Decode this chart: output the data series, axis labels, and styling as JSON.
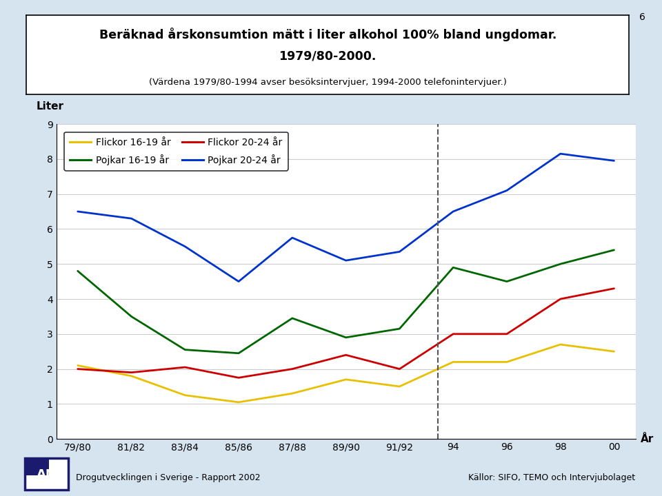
{
  "title_line1": "Beräknad årskonsumtion mätt i liter alkohol 100% bland ungdomar.",
  "title_line2": "1979/80-2000.",
  "subtitle": "(Värdena 1979/80-1994 avser besöksintervjuer, 1994-2000 telefonintervjuer.)",
  "ylabel": "Liter",
  "xlabel": "År",
  "page_number": "6",
  "x_labels": [
    "79/80",
    "81/82",
    "83/84",
    "85/86",
    "87/88",
    "89/90",
    "91/92",
    "94",
    "96",
    "98",
    "00"
  ],
  "x_positions": [
    0,
    1,
    2,
    3,
    4,
    5,
    6,
    7,
    8,
    9,
    10
  ],
  "dashed_line_x": 6.72,
  "ylim": [
    0,
    9
  ],
  "yticks": [
    0,
    1,
    2,
    3,
    4,
    5,
    6,
    7,
    8,
    9
  ],
  "series": [
    {
      "label": "Flickor 16-19 år",
      "color": "#E8C000",
      "values": [
        2.1,
        1.8,
        1.25,
        1.05,
        1.3,
        1.7,
        1.5,
        2.2,
        2.2,
        2.7,
        2.5
      ]
    },
    {
      "label": "Flickor 20-24 år",
      "color": "#CC0000",
      "values": [
        2.0,
        1.9,
        2.05,
        1.75,
        2.0,
        2.4,
        2.0,
        3.0,
        3.0,
        4.0,
        4.3
      ]
    },
    {
      "label": "Pojkar 16-19 år",
      "color": "#006600",
      "values": [
        4.8,
        3.5,
        2.55,
        2.45,
        3.45,
        2.9,
        3.15,
        4.9,
        4.5,
        5.0,
        5.4
      ]
    },
    {
      "label": "Pojkar 20-24 år",
      "color": "#0033CC",
      "values": [
        6.5,
        6.3,
        5.5,
        4.5,
        5.75,
        5.1,
        5.35,
        6.5,
        7.1,
        8.15,
        7.95
      ]
    }
  ],
  "legend_order": [
    0,
    2,
    1,
    3
  ],
  "background_color": "#D6E4F0",
  "plot_bg_color": "#ffffff",
  "footer_left": "Drogutvecklingen i Sverige - Rapport 2002",
  "footer_right": "Källor: SIFO, TEMO och Intervjubolaget"
}
